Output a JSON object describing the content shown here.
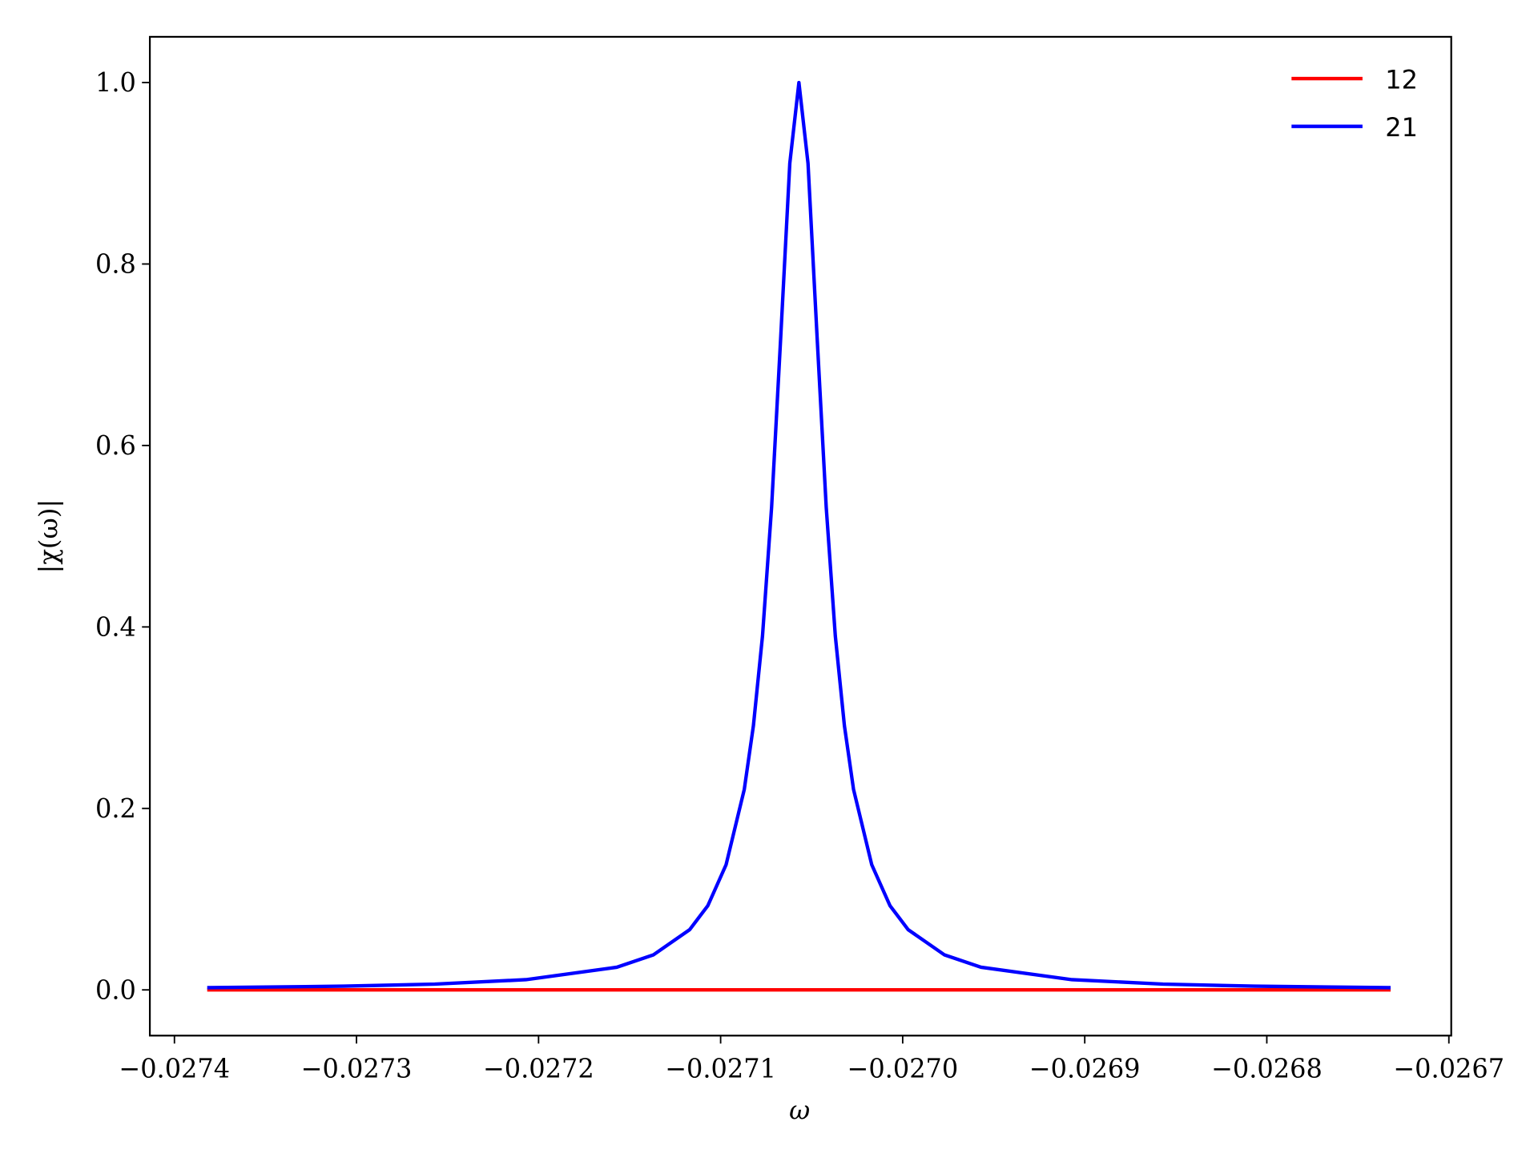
{
  "chart_data": {
    "type": "line",
    "x_label": "ω",
    "y_label": "|χ(ω)|",
    "x": [
      -0.027382,
      -0.027307,
      -0.027257,
      -0.027207,
      -0.027157,
      -0.027137,
      -0.027117,
      -0.027107,
      -0.027097,
      -0.027087,
      -0.027082,
      -0.027077,
      -0.027072,
      -0.027067,
      -0.027062,
      -0.027057,
      -0.027052,
      -0.027047,
      -0.027042,
      -0.027037,
      -0.027032,
      -0.027027,
      -0.027017,
      -0.027007,
      -0.026997,
      -0.026977,
      -0.026957,
      -0.026907,
      -0.026857,
      -0.026807,
      -0.026732
    ],
    "series": [
      {
        "name": "12",
        "color": "#ff0000",
        "values": [
          0,
          0,
          0,
          0,
          0,
          0,
          0,
          0,
          0,
          0,
          0,
          0,
          0,
          0,
          0,
          0,
          0,
          0,
          0,
          0,
          0,
          0,
          0,
          0,
          0,
          0,
          0,
          0,
          0,
          0,
          0
        ]
      },
      {
        "name": "21",
        "color": "#0000ff",
        "values": [
          0.00242,
          0.00408,
          0.00636,
          0.01125,
          0.02496,
          0.0385,
          0.0664,
          0.0929,
          0.138,
          0.221,
          0.291,
          0.39,
          0.532,
          0.719,
          0.911,
          1.0,
          0.911,
          0.719,
          0.532,
          0.39,
          0.291,
          0.221,
          0.138,
          0.0929,
          0.0664,
          0.0385,
          0.02496,
          0.01125,
          0.00636,
          0.00408,
          0.00242
        ]
      }
    ],
    "xlim": [
      -0.0274135,
      -0.0266987
    ],
    "ylim": [
      -0.0504,
      1.0504
    ],
    "xticks": [
      {
        "value": -0.0274,
        "label": "−0.0274"
      },
      {
        "value": -0.0273,
        "label": "−0.0273"
      },
      {
        "value": -0.0272,
        "label": "−0.0272"
      },
      {
        "value": -0.0271,
        "label": "−0.0271"
      },
      {
        "value": -0.027,
        "label": "−0.0270"
      },
      {
        "value": -0.0269,
        "label": "−0.0269"
      },
      {
        "value": -0.0268,
        "label": "−0.0268"
      },
      {
        "value": -0.0267,
        "label": "−0.0267"
      }
    ],
    "yticks": [
      {
        "value": 0,
        "label": "0.0"
      },
      0.2,
      0.4,
      0.6,
      0.8,
      {
        "value": 1,
        "label": "1.0"
      }
    ],
    "grid": false,
    "legend": "upper right"
  }
}
